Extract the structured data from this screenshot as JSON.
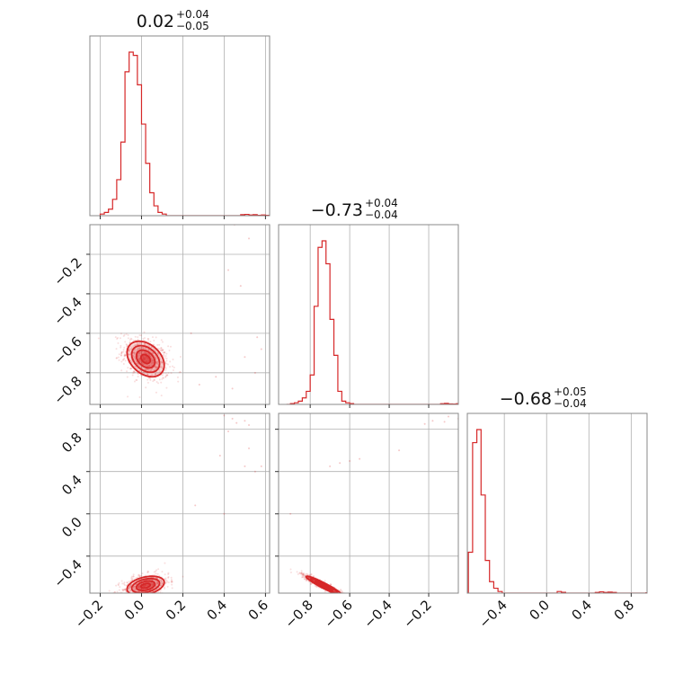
{
  "chart_data": {
    "type": "corner",
    "color": "#d62728",
    "grid": true,
    "titles": [
      {
        "value": "0.02",
        "plus": "+0.04",
        "minus": "−0.05"
      },
      {
        "value": "−0.73",
        "plus": "+0.04",
        "minus": "−0.04"
      },
      {
        "value": "−0.68",
        "plus": "+0.05",
        "minus": "−0.04"
      }
    ],
    "params": [
      {
        "range": [
          -0.25,
          0.62
        ],
        "ticks": [
          -0.2,
          0.0,
          0.2,
          0.4,
          0.6
        ],
        "tick_labels": [
          "−0.2",
          "0.0",
          "0.2",
          "0.4",
          "0.6"
        ]
      },
      {
        "range": [
          -0.96,
          -0.05
        ],
        "ticks": [
          -0.8,
          -0.6,
          -0.4,
          -0.2
        ],
        "tick_labels": [
          "−0.8",
          "−0.6",
          "−0.4",
          "−0.2"
        ]
      },
      {
        "range": [
          -0.75,
          0.95
        ],
        "ticks": [
          -0.4,
          0.0,
          0.4,
          0.8
        ],
        "tick_labels": [
          "−0.4",
          "0.0",
          "0.4",
          "0.8"
        ]
      }
    ],
    "hist1d": [
      {
        "bin_start": -0.2,
        "bin_width": 0.02,
        "counts": [
          0.01,
          0.02,
          0.04,
          0.1,
          0.22,
          0.45,
          0.88,
          1.0,
          0.98,
          0.8,
          0.56,
          0.32,
          0.14,
          0.06,
          0.02,
          0.01,
          0,
          0,
          0,
          0,
          0,
          0,
          0,
          0,
          0,
          0,
          0,
          0,
          0,
          0,
          0,
          0,
          0,
          0,
          0.006,
          0.008,
          0.004,
          0.006,
          0.002,
          0.004,
          0.002
        ]
      },
      {
        "bin_start": -0.92,
        "bin_width": 0.02,
        "counts": [
          0,
          0.005,
          0.01,
          0.02,
          0.04,
          0.08,
          0.18,
          0.6,
          0.96,
          1.0,
          0.86,
          0.52,
          0.3,
          0.08,
          0.02,
          0.01,
          0.005,
          0,
          0,
          0,
          0,
          0,
          0,
          0,
          0,
          0,
          0,
          0,
          0,
          0,
          0,
          0,
          0,
          0,
          0,
          0,
          0,
          0,
          0,
          0.004,
          0.006,
          0.003,
          0.002,
          0.004
        ]
      },
      {
        "bin_start": -0.74,
        "bin_width": 0.04,
        "counts": [
          0.25,
          0.92,
          1.0,
          0.6,
          0.2,
          0.07,
          0.03,
          0.01,
          0,
          0,
          0,
          0,
          0,
          0,
          0,
          0,
          0,
          0,
          0,
          0,
          0,
          0.01,
          0.005,
          0,
          0,
          0,
          0,
          0,
          0,
          0,
          0.004,
          0.008,
          0.004,
          0.006,
          0.004,
          0,
          0,
          0,
          0,
          0,
          0,
          0,
          0.002
        ]
      }
    ],
    "correlations": [
      {
        "pair": [
          0,
          1
        ],
        "center": [
          0.02,
          -0.73
        ],
        "spread": [
          0.045,
          0.045
        ],
        "rho": -0.35,
        "outliers": [
          [
            0.45,
            -0.05
          ],
          [
            0.38,
            -0.04
          ],
          [
            0.52,
            -0.12
          ],
          [
            0.42,
            -0.28
          ],
          [
            0.48,
            -0.36
          ],
          [
            0.56,
            -0.62
          ],
          [
            0.58,
            -0.68
          ],
          [
            0.5,
            -0.72
          ],
          [
            0.55,
            -0.8
          ],
          [
            0.44,
            -0.88
          ],
          [
            0.36,
            -0.82
          ],
          [
            0.24,
            -0.6
          ],
          [
            0.28,
            -0.86
          ]
        ]
      },
      {
        "pair": [
          0,
          2
        ],
        "center": [
          0.02,
          -0.68
        ],
        "spread": [
          0.045,
          0.045
        ],
        "rho": 0.35,
        "outliers": [
          [
            0.4,
            0.93
          ],
          [
            0.44,
            0.9
          ],
          [
            0.5,
            0.88
          ],
          [
            0.52,
            0.84
          ],
          [
            0.46,
            0.86
          ],
          [
            0.38,
            0.55
          ],
          [
            0.5,
            0.45
          ],
          [
            0.55,
            0.4
          ],
          [
            0.58,
            0.45
          ],
          [
            0.26,
            0.08
          ],
          [
            0.4,
            0.0
          ],
          [
            0.52,
            0.62
          ],
          [
            0.42,
            0.78
          ]
        ]
      },
      {
        "pair": [
          1,
          2
        ],
        "center": [
          -0.73,
          -0.68
        ],
        "spread": [
          0.045,
          0.045
        ],
        "rho": -0.95,
        "outliers": [
          [
            -0.1,
            0.92
          ],
          [
            -0.05,
            0.9
          ],
          [
            -0.22,
            0.85
          ],
          [
            -0.18,
            0.88
          ],
          [
            -0.35,
            0.6
          ],
          [
            -0.6,
            0.5
          ],
          [
            -0.55,
            0.52
          ],
          [
            -0.7,
            0.45
          ],
          [
            -0.9,
            0.0
          ],
          [
            -0.65,
            0.48
          ],
          [
            -0.12,
            0.87
          ]
        ]
      }
    ]
  }
}
